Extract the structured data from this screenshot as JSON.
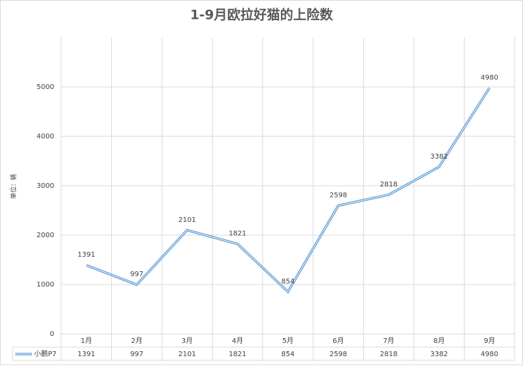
{
  "chart_data": {
    "type": "line",
    "title": "1-9月欧拉好猫的上险数",
    "y_label": "单位：辆",
    "categories": [
      "1月",
      "2月",
      "3月",
      "4月",
      "5月",
      "6月",
      "7月",
      "8月",
      "9月"
    ],
    "series": [
      {
        "name": "小鹏P7",
        "color": "#5b9bd5",
        "values": [
          1391,
          997,
          2101,
          1821,
          854,
          2598,
          2818,
          3382,
          4980
        ]
      }
    ],
    "ylim": [
      0,
      6000
    ],
    "yticks": [
      0,
      1000,
      2000,
      3000,
      4000,
      5000
    ],
    "grid": true,
    "data_table": true
  }
}
